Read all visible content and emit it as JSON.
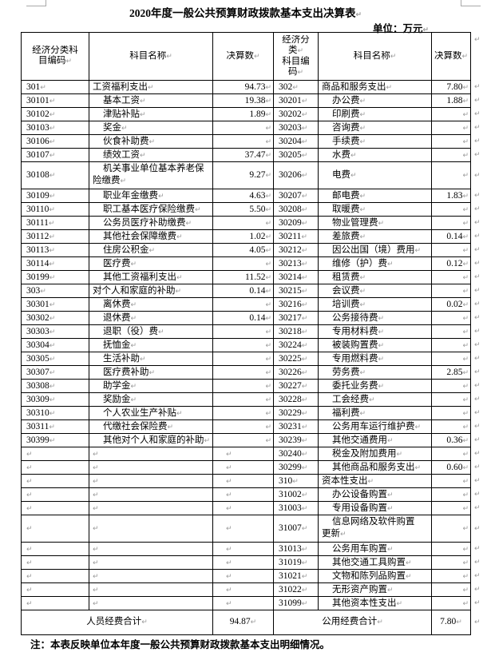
{
  "title": "2020年度一般公共预算财政拨款基本支出决算表",
  "unit_label": "单位：万元",
  "note": "注：本表反映单位本年度一般公共预算财政拨款基本支出明细情况。",
  "marks": {
    "pilcrow": "↵"
  },
  "table": {
    "headers": {
      "left_code": "经济分类科目编码",
      "left_name": "科目名称",
      "left_value": "决算数",
      "right_code_line1": "经济分类",
      "right_code_line2": "科目编码",
      "right_name": "科目名称",
      "right_value": "决算数"
    },
    "rows": [
      {
        "lc": "301",
        "ln": "工资福利支出",
        "lv": "94.73",
        "rc": "302",
        "rn": "商品和服务支出",
        "rv": "7.80",
        "tall": false
      },
      {
        "lc": "30101",
        "ln": "基本工资",
        "lv": "19.38",
        "rc": "30201",
        "rn": "办公费",
        "rv": "1.88",
        "tall": false
      },
      {
        "lc": "30102",
        "ln": "津贴补贴",
        "lv": "1.89",
        "rc": "30202",
        "rn": "印刷费",
        "rv": "",
        "tall": false
      },
      {
        "lc": "30103",
        "ln": "奖金",
        "lv": "",
        "rc": "30203",
        "rn": "咨询费",
        "rv": "",
        "tall": false
      },
      {
        "lc": "30106",
        "ln": "伙食补助费",
        "lv": "",
        "rc": "30204",
        "rn": "手续费",
        "rv": "",
        "tall": false
      },
      {
        "lc": "30107",
        "ln": "绩效工资",
        "lv": "37.47",
        "rc": "30205",
        "rn": "水费",
        "rv": "",
        "tall": false
      },
      {
        "lc": "30108",
        "ln": "机关事业单位基本养老保\n险缴费",
        "lv": "9.27",
        "rc": "30206",
        "rn": "电费",
        "rv": "",
        "tall": true
      },
      {
        "lc": "30109",
        "ln": "职业年金缴费",
        "lv": "4.63",
        "rc": "30207",
        "rn": "邮电费",
        "rv": "1.83",
        "tall": false
      },
      {
        "lc": "30110",
        "ln": "职工基本医疗保险缴费",
        "lv": "5.50",
        "rc": "30208",
        "rn": "取暖费",
        "rv": "",
        "tall": false
      },
      {
        "lc": "30111",
        "ln": "公务员医疗补助缴费",
        "lv": "",
        "rc": "30209",
        "rn": "物业管理费",
        "rv": "",
        "tall": false
      },
      {
        "lc": "30112",
        "ln": "其他社会保障缴费",
        "lv": "1.02",
        "rc": "30211",
        "rn": "差旅费",
        "rv": "0.14",
        "tall": false
      },
      {
        "lc": "30113",
        "ln": "住房公积金",
        "lv": "4.05",
        "rc": "30212",
        "rn": "因公出国（境）费用",
        "rv": "",
        "tall": false
      },
      {
        "lc": "30114",
        "ln": "医疗费",
        "lv": "",
        "rc": "30213",
        "rn": "维修（护）费",
        "rv": "0.12",
        "tall": false
      },
      {
        "lc": "30199",
        "ln": "其他工资福利支出",
        "lv": "11.52",
        "rc": "30214",
        "rn": "租赁费",
        "rv": "",
        "tall": false
      },
      {
        "lc": "303",
        "ln": "对个人和家庭的补助",
        "lv": "0.14",
        "rc": "30215",
        "rn": "会议费",
        "rv": "",
        "tall": false
      },
      {
        "lc": "30301",
        "ln": "离休费",
        "lv": "",
        "rc": "30216",
        "rn": "培训费",
        "rv": "0.02",
        "tall": false
      },
      {
        "lc": "30302",
        "ln": "退休费",
        "lv": "0.14",
        "rc": "30217",
        "rn": "公务接待费",
        "rv": "",
        "tall": false
      },
      {
        "lc": "30303",
        "ln": "退职（役）费",
        "lv": "",
        "rc": "30218",
        "rn": "专用材料费",
        "rv": "",
        "tall": false
      },
      {
        "lc": "30304",
        "ln": "抚恤金",
        "lv": "",
        "rc": "30224",
        "rn": "被装购置费",
        "rv": "",
        "tall": false
      },
      {
        "lc": "30305",
        "ln": "生活补助",
        "lv": "",
        "rc": "30225",
        "rn": "专用燃料费",
        "rv": "",
        "tall": false
      },
      {
        "lc": "30307",
        "ln": "医疗费补助",
        "lv": "",
        "rc": "30226",
        "rn": "劳务费",
        "rv": "2.85",
        "tall": false
      },
      {
        "lc": "30308",
        "ln": "助学金",
        "lv": "",
        "rc": "30227",
        "rn": "委托业务费",
        "rv": "",
        "tall": false
      },
      {
        "lc": "30309",
        "ln": "奖励金",
        "lv": "",
        "rc": "30228",
        "rn": "工会经费",
        "rv": "",
        "tall": false
      },
      {
        "lc": "30310",
        "ln": "个人农业生产补贴",
        "lv": "",
        "rc": "30229",
        "rn": "福利费",
        "rv": "",
        "tall": false
      },
      {
        "lc": "30311",
        "ln": "代缴社会保险费",
        "lv": "",
        "rc": "30231",
        "rn": "公务用车运行维护费",
        "rv": "",
        "tall": false
      },
      {
        "lc": "30399",
        "ln": "其他对个人和家庭的补助",
        "lv": "",
        "rc": "30239",
        "rn": "其他交通费用",
        "rv": "0.36",
        "tall": false
      },
      {
        "lc": "",
        "ln": "",
        "lv": "",
        "rc": "30240",
        "rn": "税金及附加费用",
        "rv": "",
        "tall": false
      },
      {
        "lc": "",
        "ln": "",
        "lv": "",
        "rc": "30299",
        "rn": "其他商品和服务支出",
        "rv": "0.60",
        "tall": false
      },
      {
        "lc": "",
        "ln": "",
        "lv": "",
        "rc": "310",
        "rn": "资本性支出",
        "rv": "",
        "tall": false
      },
      {
        "lc": "",
        "ln": "",
        "lv": "",
        "rc": "31002",
        "rn": "办公设备购置",
        "rv": "",
        "tall": false
      },
      {
        "lc": "",
        "ln": "",
        "lv": "",
        "rc": "31003",
        "rn": "专用设备购置",
        "rv": "",
        "tall": false
      },
      {
        "lc": "",
        "ln": "",
        "lv": "",
        "rc": "31007",
        "rn": "信息网络及软件购置\n更新",
        "rv": "",
        "tall": true
      },
      {
        "lc": "",
        "ln": "",
        "lv": "",
        "rc": "31013",
        "rn": "公务用车购置",
        "rv": "",
        "tall": false
      },
      {
        "lc": "",
        "ln": "",
        "lv": "",
        "rc": "31019",
        "rn": "其他交通工具购置",
        "rv": "",
        "tall": false
      },
      {
        "lc": "",
        "ln": "",
        "lv": "",
        "rc": "31021",
        "rn": "文物和陈列品购置",
        "rv": "",
        "tall": false
      },
      {
        "lc": "",
        "ln": "",
        "lv": "",
        "rc": "31022",
        "rn": "无形资产购置",
        "rv": "",
        "tall": false
      },
      {
        "lc": "",
        "ln": "",
        "lv": "",
        "rc": "31099",
        "rn": "其他资本性支出",
        "rv": "",
        "tall": false
      }
    ],
    "totals": {
      "left_label": "人员经费合计",
      "left_value": "94.87",
      "right_label": "公用经费合计",
      "right_value": "7.80"
    }
  }
}
